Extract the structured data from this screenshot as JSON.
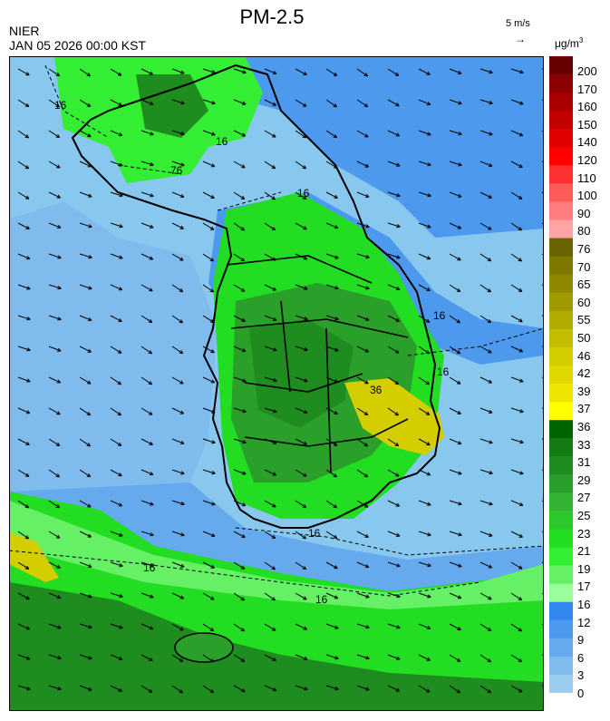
{
  "header": {
    "title": "PM-2.5",
    "agency": "NIER",
    "datetime": "JAN 05 2026 00:00 KST",
    "wind_scale_label": "5 m/s",
    "unit": "μg/m",
    "unit_sup": "3"
  },
  "contour_labels": [
    "16",
    "16",
    "76",
    "16",
    "16",
    "36",
    "16",
    "16",
    "16",
    "16"
  ],
  "colorbar": {
    "labels": [
      "200",
      "170",
      "160",
      "150",
      "140",
      "120",
      "110",
      "100",
      "90",
      "80",
      "76",
      "70",
      "65",
      "60",
      "55",
      "50",
      "46",
      "42",
      "39",
      "37",
      "36",
      "33",
      "31",
      "29",
      "27",
      "25",
      "23",
      "21",
      "19",
      "17",
      "16",
      "12",
      "9",
      "6",
      "3",
      "0"
    ],
    "colors": [
      "#660000",
      "#8b0000",
      "#a80000",
      "#c40000",
      "#e00000",
      "#ff0000",
      "#ff3030",
      "#ff5a5a",
      "#ff7d7d",
      "#ffa3a3",
      "#6b6500",
      "#7e7800",
      "#8f8900",
      "#a09a00",
      "#b2ab00",
      "#c3bc00",
      "#d4cd00",
      "#e0d800",
      "#eee600",
      "#ffff00",
      "#006400",
      "#127b12",
      "#1e8c1e",
      "#2aa02a",
      "#33b533",
      "#2cc82c",
      "#22dd22",
      "#33ee33",
      "#66f066",
      "#99ff99",
      "#3388ee",
      "#4d99ee",
      "#66aaee",
      "#80bbee",
      "#99ccee"
    ]
  },
  "wind": {
    "direction": "northwest",
    "arrows": "southeast"
  }
}
